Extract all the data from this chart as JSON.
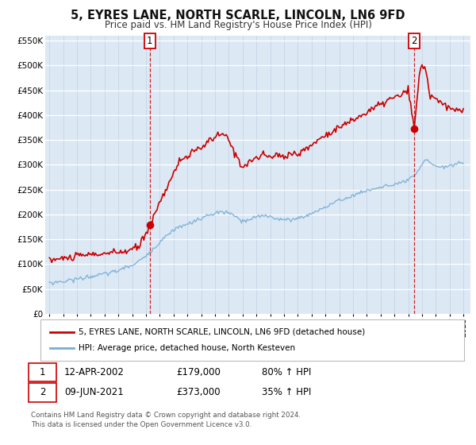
{
  "title": "5, EYRES LANE, NORTH SCARLE, LINCOLN, LN6 9FD",
  "subtitle": "Price paid vs. HM Land Registry's House Price Index (HPI)",
  "xlim": [
    1994.7,
    2025.5
  ],
  "ylim": [
    0,
    560000
  ],
  "yticks": [
    0,
    50000,
    100000,
    150000,
    200000,
    250000,
    300000,
    350000,
    400000,
    450000,
    500000,
    550000
  ],
  "ytick_labels": [
    "£0",
    "£50K",
    "£100K",
    "£150K",
    "£200K",
    "£250K",
    "£300K",
    "£350K",
    "£400K",
    "£450K",
    "£500K",
    "£550K"
  ],
  "xticks": [
    1995,
    1996,
    1997,
    1998,
    1999,
    2000,
    2001,
    2002,
    2003,
    2004,
    2005,
    2006,
    2007,
    2008,
    2009,
    2010,
    2011,
    2012,
    2013,
    2014,
    2015,
    2016,
    2017,
    2018,
    2019,
    2020,
    2021,
    2022,
    2023,
    2024,
    2025
  ],
  "marker1_x": 2002.28,
  "marker1_y": 179000,
  "marker2_x": 2021.44,
  "marker2_y": 373000,
  "label1_date": "12-APR-2002",
  "label1_price": "£179,000",
  "label1_hpi": "80% ↑ HPI",
  "label2_date": "09-JUN-2021",
  "label2_price": "£373,000",
  "label2_hpi": "35% ↑ HPI",
  "house_line_color": "#cc0000",
  "hpi_line_color": "#7aadd4",
  "plot_bg": "#dce9f5",
  "grid_color": "#c8d8e8",
  "legend_label_house": "5, EYRES LANE, NORTH SCARLE, LINCOLN, LN6 9FD (detached house)",
  "legend_label_hpi": "HPI: Average price, detached house, North Kesteven",
  "footer": "Contains HM Land Registry data © Crown copyright and database right 2024.\nThis data is licensed under the Open Government Licence v3.0."
}
